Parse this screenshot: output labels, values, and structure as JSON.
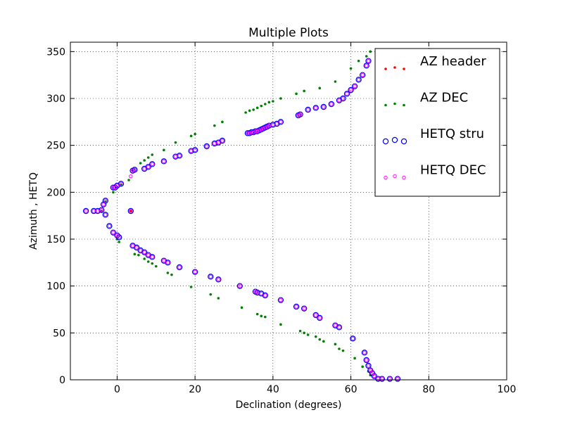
{
  "chart_data": {
    "type": "scatter",
    "title": "Multiple Plots",
    "xlabel": "Declination (degrees)",
    "ylabel": "Azimuth , HETQ",
    "xlim": [
      -12,
      100
    ],
    "ylim": [
      0,
      360
    ],
    "xticks": [
      0,
      20,
      40,
      60,
      80,
      100
    ],
    "yticks": [
      0,
      50,
      100,
      150,
      200,
      250,
      300,
      350
    ],
    "grid": true,
    "legend_position": "top-right",
    "series": [
      {
        "name": "AZ header",
        "marker": "dot-small",
        "color": "#ff0000",
        "x": [
          3.5
        ],
        "y": [
          180
        ]
      },
      {
        "name": "AZ DEC",
        "marker": "dot-small",
        "color": "#007f00",
        "x": [
          65,
          64,
          62,
          60,
          56,
          52,
          48,
          46,
          42,
          40,
          39,
          38,
          37,
          36,
          35,
          34,
          33,
          27,
          25,
          20,
          19,
          15,
          12,
          9,
          8,
          7,
          6,
          4,
          3,
          1,
          0,
          -1,
          -3,
          -4,
          0,
          0.5,
          4.5,
          5.5,
          7,
          8,
          9,
          10,
          13,
          14,
          19,
          24,
          26,
          32,
          36,
          37,
          38,
          42,
          47,
          48,
          49,
          51,
          52,
          53,
          56,
          57,
          58,
          61,
          63,
          64.5,
          65
        ],
        "y": [
          350,
          345,
          340,
          332,
          318,
          311,
          308,
          305,
          300,
          297,
          296,
          294,
          292,
          290,
          288,
          287,
          285,
          275,
          271,
          262,
          260,
          253,
          245,
          240,
          237,
          234,
          231,
          224,
          213,
          208,
          205,
          200,
          190,
          180,
          150,
          147,
          134,
          133,
          129,
          126,
          124,
          121,
          114,
          112,
          99,
          91,
          87,
          77,
          70,
          68,
          67,
          59,
          52,
          50,
          48,
          46,
          43,
          41,
          38,
          33,
          31,
          23,
          14,
          9,
          5
        ]
      },
      {
        "name": "HETQ stru",
        "marker": "circle-open",
        "color": "#0000ff",
        "x": [
          64.5,
          64,
          63,
          62,
          61,
          60,
          59,
          58,
          57,
          55,
          53,
          51,
          49,
          47,
          46.5,
          42,
          41,
          40,
          39,
          38.5,
          38,
          37.5,
          37,
          36.5,
          36,
          35.5,
          35,
          34.5,
          34,
          33.5,
          27,
          26,
          25,
          23,
          20,
          19,
          16,
          15,
          12,
          9,
          8,
          7,
          4.5,
          4,
          1,
          0,
          -0.5,
          -1,
          -3,
          -3.5,
          -4,
          -5,
          -6,
          -8,
          3.5,
          -3,
          -2,
          -1,
          0,
          0.5,
          4,
          5,
          6,
          7,
          8,
          9,
          12,
          13,
          16,
          20,
          24,
          26,
          31.5,
          35.5,
          36,
          37,
          38,
          42,
          46,
          48,
          51,
          52,
          56,
          57,
          60.5,
          63.5,
          64,
          64.5,
          65,
          65.5,
          66,
          67,
          68,
          70,
          72
        ],
        "y": [
          340,
          335,
          325,
          320,
          313,
          309,
          305,
          300,
          298,
          294,
          291,
          290,
          288,
          283,
          282,
          275,
          273,
          272,
          271,
          270,
          269,
          268,
          267,
          266,
          265,
          265,
          264,
          264,
          263,
          263,
          255,
          253,
          252,
          249,
          245,
          244,
          239,
          238,
          233,
          230,
          227,
          225,
          224,
          223,
          209,
          207,
          205,
          205,
          191,
          187,
          181,
          180,
          180,
          180,
          180,
          176,
          164,
          157,
          154,
          152,
          143,
          141,
          138,
          136,
          133,
          131,
          127,
          125,
          120,
          115,
          110,
          107,
          100,
          94,
          93,
          92,
          90,
          85,
          78,
          76,
          69,
          66,
          58,
          56,
          44,
          29,
          21,
          15,
          10,
          7,
          4,
          1,
          1,
          1,
          1
        ]
      },
      {
        "name": "HETQ DEC",
        "marker": "circle-small",
        "color": "#ff00ff",
        "x": [
          64.5,
          64,
          63,
          62,
          61,
          60,
          59,
          58,
          57,
          55,
          53,
          51,
          49,
          47,
          46.5,
          42,
          41,
          40,
          39,
          38.5,
          38,
          37.5,
          37,
          36.5,
          36,
          35.5,
          35,
          34.5,
          34,
          33.5,
          27,
          26,
          25,
          23,
          20,
          19,
          16,
          15,
          12,
          9,
          8,
          7,
          4.5,
          4,
          3.5,
          1,
          0,
          -0.5,
          -1,
          -3,
          -3.5,
          -4,
          -5,
          -6,
          -8,
          3.5,
          -3,
          -2,
          -1,
          0,
          0.5,
          4,
          5,
          6,
          7,
          8,
          9,
          12,
          13,
          16,
          20,
          24,
          26,
          31.5,
          35.5,
          36,
          37,
          38,
          42,
          46,
          48,
          51,
          52,
          56,
          57,
          60.5,
          63.5,
          64,
          64.5,
          65,
          65.5,
          66,
          67,
          68,
          70,
          72
        ],
        "y": [
          340,
          335,
          325,
          320,
          313,
          309,
          305,
          300,
          298,
          294,
          291,
          290,
          288,
          283,
          282,
          275,
          273,
          272,
          271,
          270,
          269,
          268,
          267,
          266,
          265,
          265,
          264,
          264,
          263,
          263,
          255,
          253,
          252,
          249,
          245,
          244,
          239,
          238,
          233,
          230,
          227,
          225,
          224,
          223,
          217,
          209,
          207,
          205,
          205,
          191,
          187,
          181,
          180,
          180,
          180,
          180,
          176,
          164,
          157,
          154,
          152,
          143,
          141,
          138,
          136,
          133,
          131,
          127,
          125,
          120,
          115,
          110,
          107,
          100,
          94,
          93,
          92,
          90,
          85,
          78,
          76,
          69,
          66,
          58,
          56,
          44,
          29,
          21,
          15,
          10,
          7,
          4,
          1,
          1,
          1,
          1
        ]
      }
    ]
  }
}
